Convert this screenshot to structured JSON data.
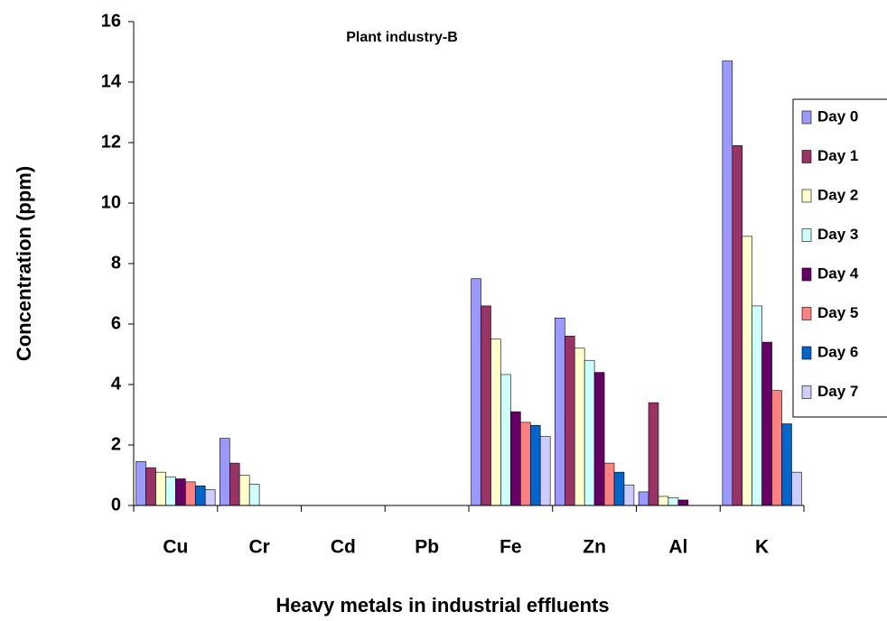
{
  "chart_data": {
    "type": "bar",
    "title": "Plant industry-B",
    "x_label": "Heavy metals in industrial effluents",
    "y_label": "Concentration (ppm)",
    "categories": [
      "Cu",
      "Cr",
      "Cd",
      "Pb",
      "Fe",
      "Zn",
      "Al",
      "K"
    ],
    "series": [
      {
        "name": "Day 0",
        "color": "#9999ff",
        "values": [
          1.45,
          2.22,
          0,
          0,
          7.5,
          6.2,
          0.45,
          14.7
        ]
      },
      {
        "name": "Day 1",
        "color": "#993366",
        "values": [
          1.25,
          1.4,
          0,
          0,
          6.6,
          5.6,
          3.4,
          11.9
        ]
      },
      {
        "name": "Day 2",
        "color": "#ffffcc",
        "values": [
          1.1,
          1.0,
          0,
          0,
          5.5,
          5.2,
          0.3,
          8.9
        ]
      },
      {
        "name": "Day 3",
        "color": "#ccffff",
        "values": [
          0.95,
          0.7,
          0,
          0,
          4.33,
          4.8,
          0.25,
          6.6
        ]
      },
      {
        "name": "Day 4",
        "color": "#660066",
        "values": [
          0.88,
          0,
          0,
          0,
          3.1,
          4.4,
          0.18,
          5.4
        ]
      },
      {
        "name": "Day 5",
        "color": "#ff8080",
        "values": [
          0.78,
          0,
          0,
          0,
          2.75,
          1.4,
          0,
          3.8
        ]
      },
      {
        "name": "Day 6",
        "color": "#0066cc",
        "values": [
          0.65,
          0,
          0,
          0,
          2.65,
          1.1,
          0,
          2.7
        ]
      },
      {
        "name": "Day 7",
        "color": "#ccccff",
        "values": [
          0.52,
          0,
          0,
          0,
          2.28,
          0.68,
          0,
          1.1
        ]
      }
    ],
    "ylim": [
      0,
      16
    ],
    "yticks": [
      0,
      2,
      4,
      6,
      8,
      10,
      12,
      14,
      16
    ],
    "legend": "right",
    "grid": false
  }
}
